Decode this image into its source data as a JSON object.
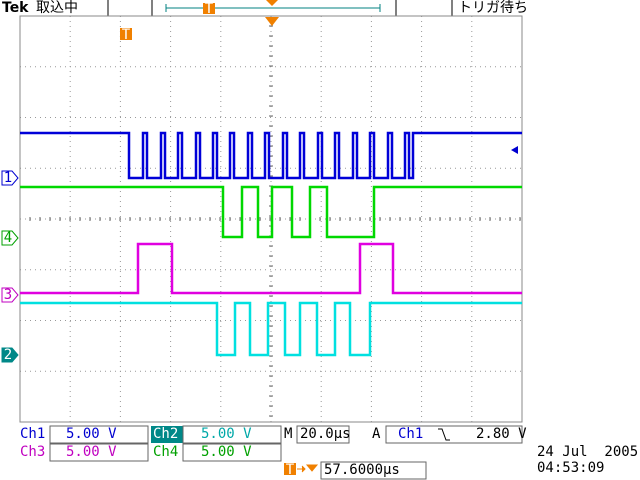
{
  "header": {
    "brand": "Tek",
    "status": "取込中",
    "trigger_status": "トリガ待ち",
    "trigger_marker": "T"
  },
  "channel_markers": [
    "1",
    "4",
    "3",
    "2"
  ],
  "readouts": {
    "ch1": {
      "label": "Ch1",
      "scale": "5.00 V"
    },
    "ch2": {
      "label": "Ch2",
      "scale": "5.00 V"
    },
    "ch3": {
      "label": "Ch3",
      "scale": "5.00 V"
    },
    "ch4": {
      "label": "Ch4",
      "scale": "5.00 V"
    },
    "timebase": {
      "label": "M",
      "value": "20.0µs"
    },
    "trigger": {
      "mode": "A",
      "source": "Ch1",
      "level": "2.80 V"
    },
    "position": "57.6000µs",
    "date": "24 Jul  2005",
    "time": "04:53:09"
  }
}
